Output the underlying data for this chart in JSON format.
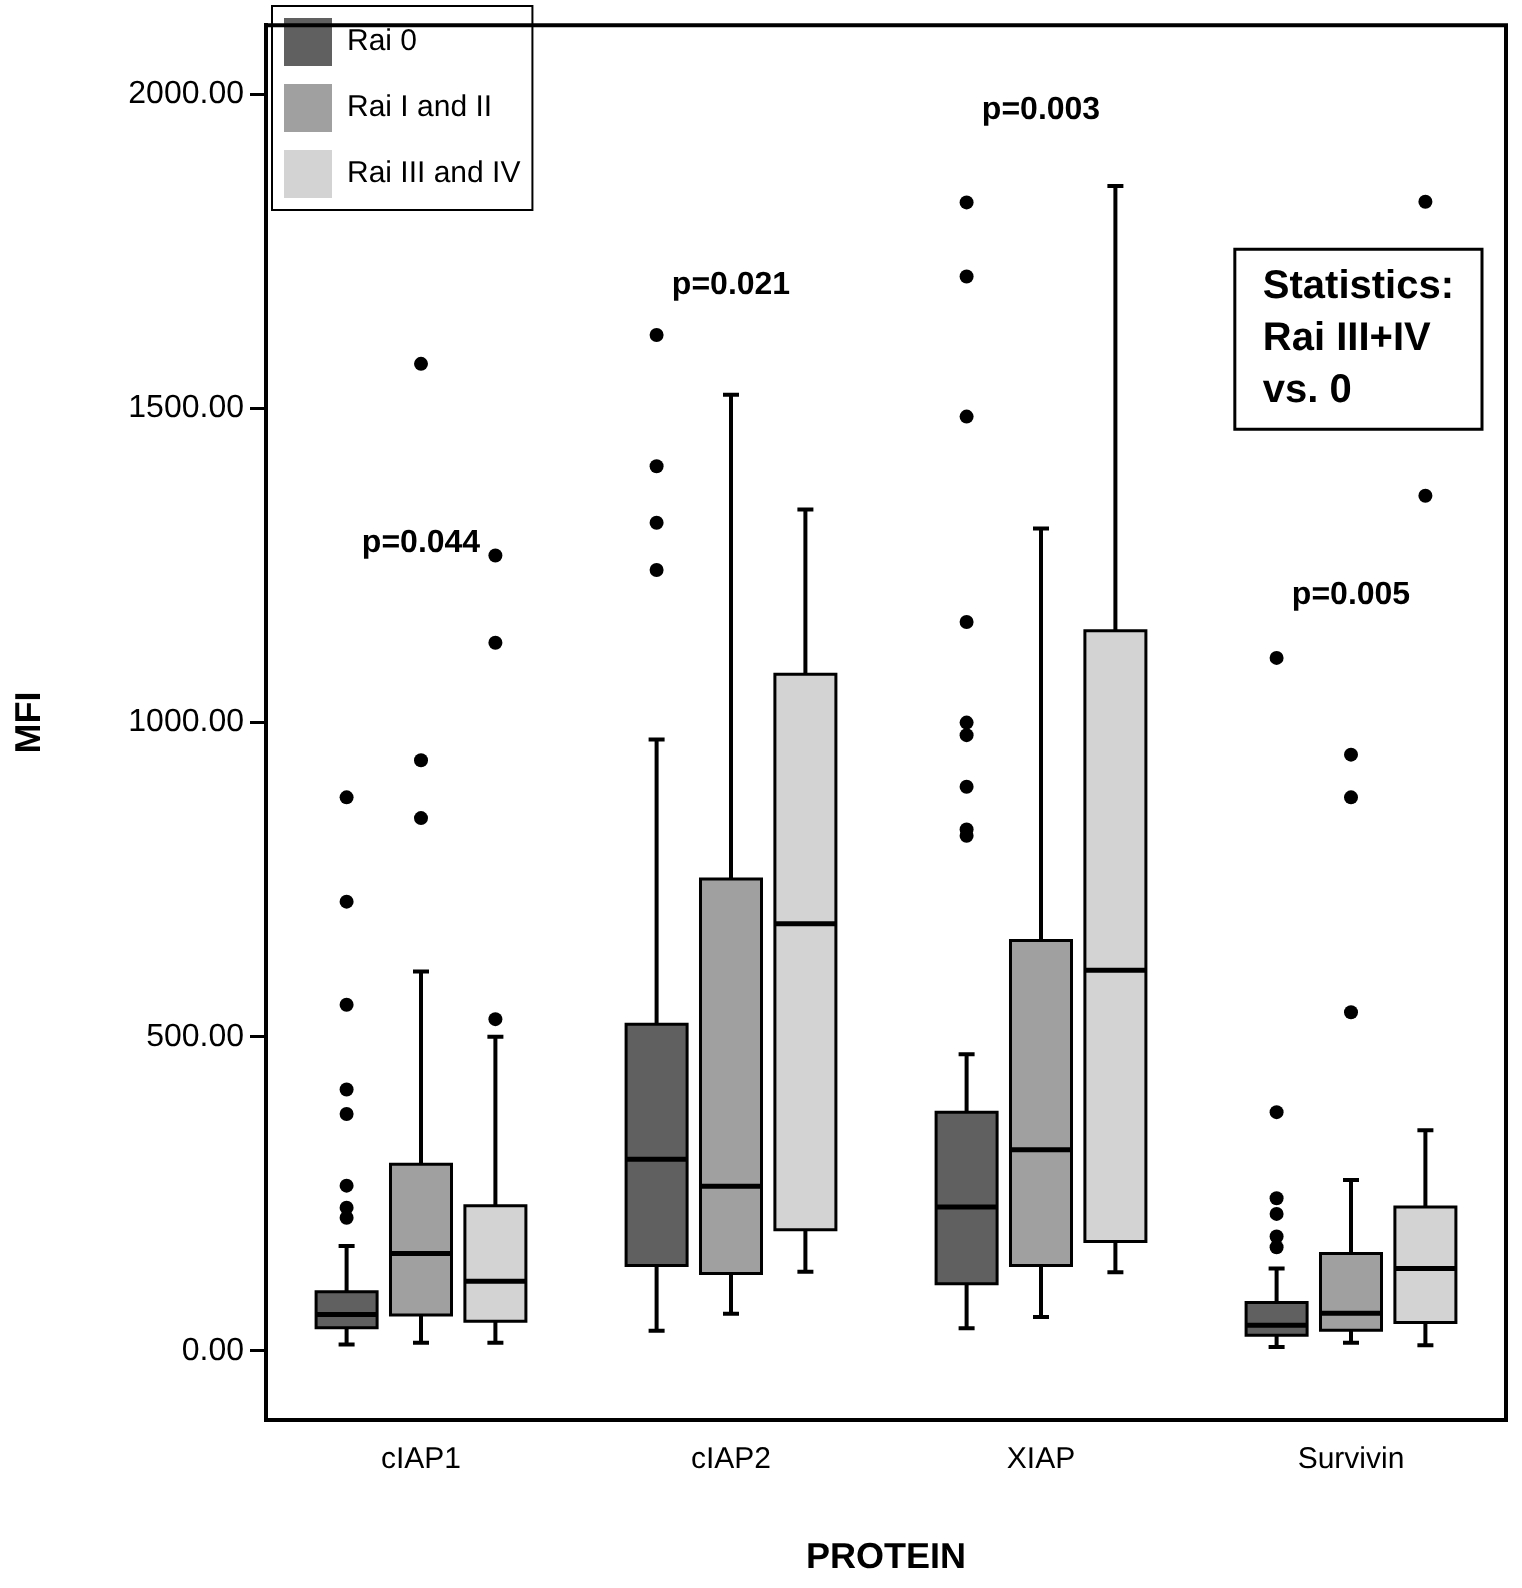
{
  "chart_data": {
    "type": "box",
    "xlabel": "PROTEIN",
    "ylabel": "MFI",
    "categories": [
      "cIAP1",
      "cIAP2",
      "XIAP",
      "Survivin"
    ],
    "ylim": [
      -110,
      2110
    ],
    "yticks": [
      {
        "value": 0,
        "label": "0.00"
      },
      {
        "value": 500,
        "label": "500.00"
      },
      {
        "value": 1000,
        "label": "1000.00"
      },
      {
        "value": 1500,
        "label": "1500.00"
      },
      {
        "value": 2000,
        "label": "2000.00"
      }
    ],
    "legend": "top left",
    "grid": false,
    "series": [
      {
        "name": "Rai 0",
        "color": "#606060",
        "boxes": [
          {
            "low": 10,
            "q1": 37,
            "median": 58,
            "q3": 94,
            "high": 167,
            "outliers": [
              881,
              715,
              551,
              416,
              377,
              263,
              228,
              212
            ]
          },
          {
            "low": 32,
            "q1": 136,
            "median": 305,
            "q3": 520,
            "high": 973,
            "outliers": [
              1617,
              1408,
              1318,
              1243
            ]
          },
          {
            "low": 36,
            "q1": 107,
            "median": 229,
            "q3": 380,
            "high": 472,
            "outliers": [
              1828,
              1710,
              1487,
              1160,
              1000,
              980,
              898,
              830,
              820
            ]
          },
          {
            "low": 6,
            "q1": 25,
            "median": 41,
            "q3": 77,
            "high": 131,
            "outliers": [
              1103,
              380,
              243,
              218,
              182,
              165
            ]
          }
        ]
      },
      {
        "name": "Rai I and II",
        "color": "#a0a0a0",
        "boxes": [
          {
            "low": 13,
            "q1": 57,
            "median": 155,
            "q3": 297,
            "high": 604,
            "outliers": [
              1571,
              940,
              848
            ]
          },
          {
            "low": 59,
            "q1": 123,
            "median": 262,
            "q3": 751,
            "high": 1522
          },
          {
            "low": 54,
            "q1": 136,
            "median": 320,
            "q3": 653,
            "high": 1309
          },
          {
            "low": 13,
            "q1": 33,
            "median": 60,
            "q3": 155,
            "high": 272,
            "outliers": [
              949,
              881,
              539
            ]
          }
        ]
      },
      {
        "name": "Rai III and IV",
        "color": "#d3d3d3",
        "boxes": [
          {
            "low": 13,
            "q1": 47,
            "median": 111,
            "q3": 231,
            "high": 500,
            "outliers": [
              1266,
              1127,
              528
            ]
          },
          {
            "low": 126,
            "q1": 193,
            "median": 680,
            "q3": 1077,
            "high": 1339
          },
          {
            "low": 125,
            "q1": 174,
            "median": 606,
            "q3": 1146,
            "high": 1854
          },
          {
            "low": 9,
            "q1": 45,
            "median": 131,
            "q3": 229,
            "high": 351,
            "outliers": [
              1829,
              1361
            ]
          }
        ]
      }
    ],
    "annotations": [
      "p=0.044",
      "p=0.021",
      "p=0.003",
      "p=0.005",
      "Statistics:\nRai III+IV\nvs. 0"
    ]
  }
}
